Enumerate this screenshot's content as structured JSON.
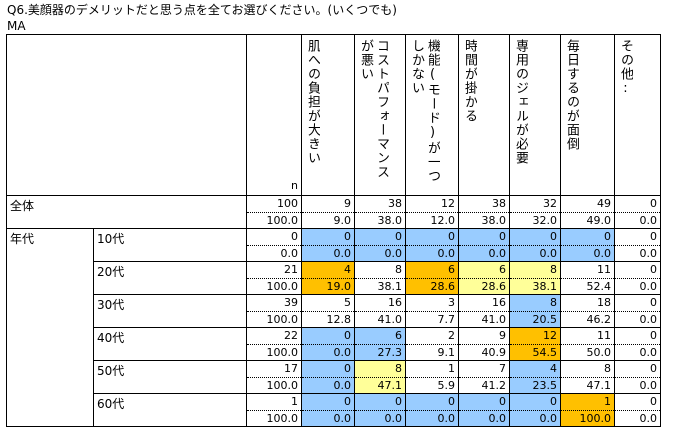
{
  "question": "Q6.美顔器のデメリットだと思う点を全てお選びください。(いくつでも)",
  "type": "MA",
  "n_label": "n",
  "columns": [
    "肌への負担が大きい",
    "コストパフォーマンスが悪い",
    "機能(モード)が一つしかない",
    "時間が掛かる",
    "専用のジェルが必要",
    "毎日するのが面倒",
    "その他:"
  ],
  "group_label": "年代",
  "rows": [
    {
      "label": "全体",
      "n": "100",
      "n_pct": "100.0",
      "counts": [
        "9",
        "38",
        "12",
        "38",
        "32",
        "49",
        "0"
      ],
      "pcts": [
        "9.0",
        "38.0",
        "12.0",
        "38.0",
        "32.0",
        "49.0",
        "0.0"
      ],
      "colors": [
        "",
        "",
        "",
        "",
        "",
        "",
        ""
      ]
    },
    {
      "label": "10代",
      "n": "0",
      "n_pct": "0.0",
      "counts": [
        "0",
        "0",
        "0",
        "0",
        "0",
        "0",
        "0"
      ],
      "pcts": [
        "0.0",
        "0.0",
        "0.0",
        "0.0",
        "0.0",
        "0.0",
        "0.0"
      ],
      "colors": [
        "blue",
        "blue",
        "blue",
        "blue",
        "blue",
        "blue",
        ""
      ]
    },
    {
      "label": "20代",
      "n": "21",
      "n_pct": "100.0",
      "counts": [
        "4",
        "8",
        "6",
        "6",
        "8",
        "11",
        "0"
      ],
      "pcts": [
        "19.0",
        "38.1",
        "28.6",
        "28.6",
        "38.1",
        "52.4",
        "0.0"
      ],
      "colors": [
        "orange",
        "",
        "orange",
        "yellow",
        "yellow",
        "",
        ""
      ]
    },
    {
      "label": "30代",
      "n": "39",
      "n_pct": "100.0",
      "counts": [
        "5",
        "16",
        "3",
        "16",
        "8",
        "18",
        "0"
      ],
      "pcts": [
        "12.8",
        "41.0",
        "7.7",
        "41.0",
        "20.5",
        "46.2",
        "0.0"
      ],
      "colors": [
        "",
        "",
        "",
        "",
        "blue",
        "",
        ""
      ]
    },
    {
      "label": "40代",
      "n": "22",
      "n_pct": "100.0",
      "counts": [
        "0",
        "6",
        "2",
        "9",
        "12",
        "11",
        "0"
      ],
      "pcts": [
        "0.0",
        "27.3",
        "9.1",
        "40.9",
        "54.5",
        "50.0",
        "0.0"
      ],
      "colors": [
        "blue",
        "blue",
        "",
        "",
        "orange",
        "",
        ""
      ]
    },
    {
      "label": "50代",
      "n": "17",
      "n_pct": "100.0",
      "counts": [
        "0",
        "8",
        "1",
        "7",
        "4",
        "8",
        "0"
      ],
      "pcts": [
        "0.0",
        "47.1",
        "5.9",
        "41.2",
        "23.5",
        "47.1",
        "0.0"
      ],
      "colors": [
        "blue",
        "yellow",
        "",
        "",
        "blue",
        "",
        ""
      ]
    },
    {
      "label": "60代",
      "n": "1",
      "n_pct": "100.0",
      "counts": [
        "0",
        "0",
        "0",
        "0",
        "0",
        "1",
        "0"
      ],
      "pcts": [
        "0.0",
        "0.0",
        "0.0",
        "0.0",
        "0.0",
        "100.0",
        "0.0"
      ],
      "colors": [
        "blue",
        "blue",
        "blue",
        "blue",
        "blue",
        "orange",
        ""
      ]
    }
  ],
  "colors": {
    "blue": "#99ccff",
    "orange": "#ffc000",
    "yellow": "#ffff99"
  }
}
